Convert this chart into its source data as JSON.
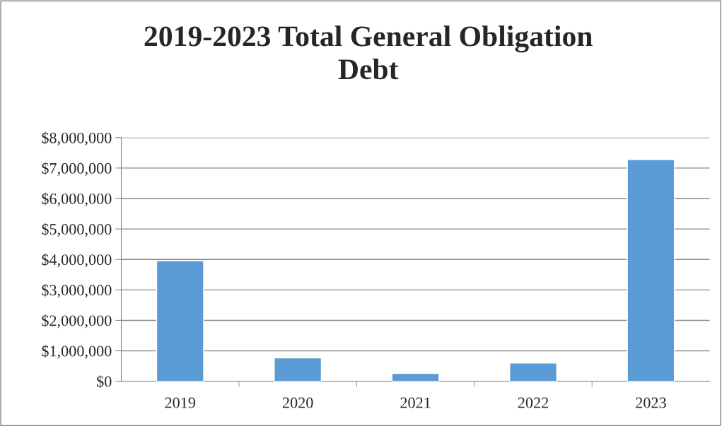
{
  "chart_data": {
    "type": "bar",
    "title": "2019-2023 Total General Obligation\nDebt",
    "categories": [
      "2019",
      "2020",
      "2021",
      "2022",
      "2023"
    ],
    "values": [
      3960000,
      770000,
      260000,
      600000,
      7280000
    ],
    "color": "#5b9bd5",
    "ylim": [
      0,
      8000000
    ],
    "yticks": [
      {
        "value": 0,
        "label": "$0"
      },
      {
        "value": 1000000,
        "label": "$1,000,000"
      },
      {
        "value": 2000000,
        "label": "$2,000,000"
      },
      {
        "value": 3000000,
        "label": "$3,000,000"
      },
      {
        "value": 4000000,
        "label": "$4,000,000"
      },
      {
        "value": 5000000,
        "label": "$5,000,000"
      },
      {
        "value": 6000000,
        "label": "$6,000,000"
      },
      {
        "value": 7000000,
        "label": "$7,000,000"
      },
      {
        "value": 8000000,
        "label": "$8,000,000"
      }
    ],
    "grid": "y",
    "legend": false
  }
}
